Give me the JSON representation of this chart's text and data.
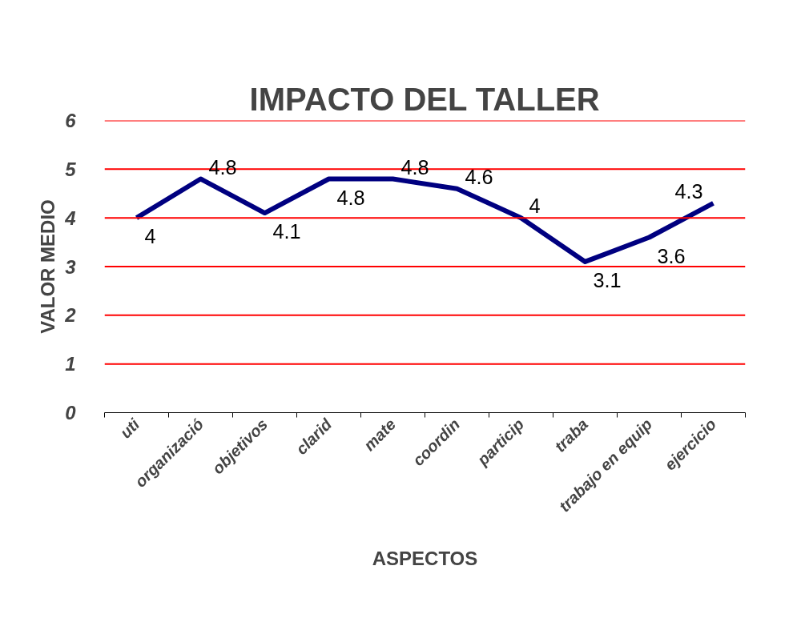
{
  "chart_data": {
    "type": "line",
    "title": "IMPACTO DEL TALLER",
    "xlabel": "ASPECTOS",
    "ylabel": "VALOR MEDIO",
    "categories": [
      "uti",
      "organizació",
      "objetivos",
      "clarid",
      "mate",
      "coordin",
      "particip",
      "traba",
      "trabajo en equip",
      "ejercicio"
    ],
    "series": [
      {
        "color": "#000080",
        "values": [
          4,
          4.8,
          4.1,
          4.8,
          4.8,
          4.6,
          4,
          3.1,
          3.6,
          4.3
        ]
      }
    ],
    "ylim": [
      0,
      6
    ],
    "yticks": [
      0,
      1,
      2,
      3,
      4,
      5,
      6
    ],
    "grid": "y",
    "data_labels": true,
    "marker": "none",
    "line_style": "solid"
  }
}
